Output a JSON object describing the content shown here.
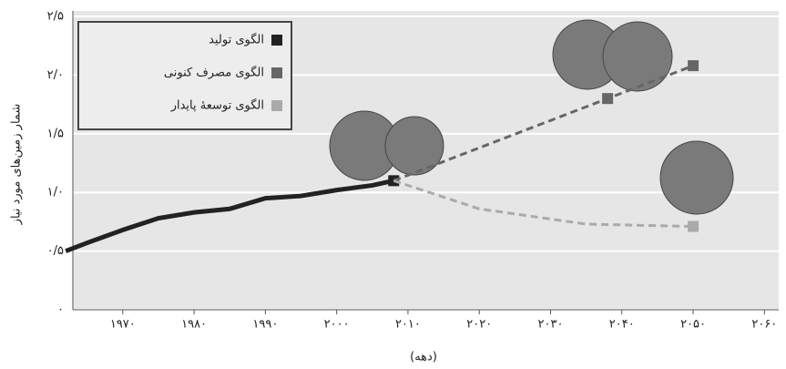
{
  "chart_data": {
    "type": "line",
    "y_label": "شمار زمین‌های مورد نیاز",
    "x_label": "(دهه)",
    "xlim": [
      1963,
      2062
    ],
    "xticks": [
      {
        "value": 1970,
        "label": "۱۹۷۰"
      },
      {
        "value": 1980,
        "label": "۱۹۸۰"
      },
      {
        "value": 1990,
        "label": "۱۹۹۰"
      },
      {
        "value": 2000,
        "label": "۲۰۰۰"
      },
      {
        "value": 2010,
        "label": "۲۰۱۰"
      },
      {
        "value": 2020,
        "label": "۲۰۲۰"
      },
      {
        "value": 2030,
        "label": "۲۰۳۰"
      },
      {
        "value": 2040,
        "label": "۲۰۴۰"
      },
      {
        "value": 2050,
        "label": "۲۰۵۰"
      },
      {
        "value": 2060,
        "label": "۲۰۶۰"
      }
    ],
    "ylim": [
      0,
      2.5
    ],
    "yticks": [
      {
        "value": 0,
        "label": "۰"
      },
      {
        "value": 0.5,
        "label": "۰/۵"
      },
      {
        "value": 1,
        "label": "۱/۰"
      },
      {
        "value": 1.5,
        "label": "۱/۵"
      },
      {
        "value": 2,
        "label": "۲/۰"
      },
      {
        "value": 2.5,
        "label": "۲/۵"
      }
    ],
    "grid": true,
    "legend": "upper left",
    "series": [
      {
        "name": "الگوی تولید",
        "color": "#222222",
        "dashed": false,
        "x": [
          1962,
          1965,
          1970,
          1975,
          1980,
          1985,
          1990,
          1995,
          2000,
          2005,
          2008
        ],
        "values": [
          0.5,
          0.57,
          0.68,
          0.78,
          0.83,
          0.86,
          0.95,
          0.97,
          1.02,
          1.06,
          1.1
        ]
      },
      {
        "name": "الگوی مصرف کنونی",
        "color": "#666666",
        "dashed": true,
        "x": [
          2008,
          2038,
          2050
        ],
        "values": [
          1.1,
          1.8,
          2.08
        ]
      },
      {
        "name": "الگوی توسعهٔ پایدار",
        "color": "#aaaaaa",
        "dashed": true,
        "x": [
          2008,
          2020,
          2035,
          2050
        ],
        "values": [
          1.1,
          0.86,
          0.73,
          0.71
        ]
      }
    ]
  }
}
